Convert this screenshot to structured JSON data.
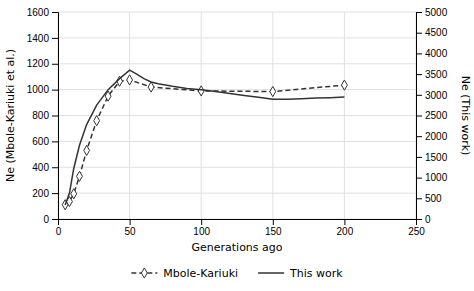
{
  "chart_data": {
    "type": "line",
    "xlabel": "Generations ago",
    "ylabel": "Ne (Mbole-Kariuki et al.)",
    "y2label": "Ne (This work)",
    "xlim": [
      0,
      250
    ],
    "xticks": [
      0,
      50,
      100,
      150,
      200,
      250
    ],
    "ylim": [
      0,
      1600
    ],
    "yticks": [
      0,
      200,
      400,
      600,
      800,
      1000,
      1200,
      1400,
      1600
    ],
    "y2lim": [
      0,
      5000
    ],
    "y2ticks": [
      0,
      500,
      1000,
      1500,
      2000,
      2500,
      3000,
      3500,
      4000,
      4500,
      5000
    ],
    "grid": true,
    "legend": "bottom",
    "series": [
      {
        "name": "Mbole-Kariuki",
        "color": "#333333",
        "line_style": "dashed",
        "marker": "diamond",
        "x": [
          5,
          8,
          11,
          15,
          20,
          27,
          35,
          43,
          50,
          65,
          100,
          150,
          200
        ],
        "values": [
          110,
          135,
          195,
          330,
          530,
          760,
          950,
          1065,
          1075,
          1020,
          990,
          985,
          1035
        ]
      },
      {
        "name": "This work",
        "color": "#333333",
        "line_style": "solid",
        "axis": "y2",
        "x": [
          5,
          8,
          11,
          15,
          20,
          27,
          35,
          43,
          50,
          55,
          60,
          65,
          70,
          80,
          90,
          100,
          110,
          120,
          130,
          140,
          150,
          160,
          170,
          180,
          190,
          200
        ],
        "values": [
          340,
          625,
          1220,
          1780,
          2280,
          2750,
          3125,
          3390,
          3595,
          3500,
          3390,
          3310,
          3265,
          3205,
          3155,
          3120,
          3080,
          3030,
          2985,
          2940,
          2890,
          2890,
          2905,
          2920,
          2930,
          2945
        ]
      }
    ]
  }
}
